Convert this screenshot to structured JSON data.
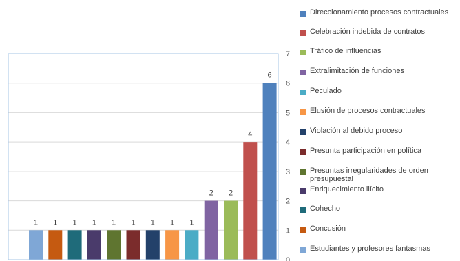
{
  "chart_data": {
    "type": "bar",
    "categories": [
      "Estudiantes y profesores fantasmas",
      "Concusión",
      "Cohecho",
      "Enriquecimiento ilícito",
      "Presuntas irregularidades de orden presupuestal",
      "Presunta participación en política",
      "Violación al debido proceso",
      "Elusión de procesos contractuales",
      "Peculado",
      "Extralimitación de funciones",
      "Tráfico de influencias",
      "Celebración indebida de contratos",
      "Direccionamiento procesos contractuales"
    ],
    "values": [
      1,
      1,
      1,
      1,
      1,
      1,
      1,
      1,
      1,
      2,
      2,
      4,
      6
    ],
    "value_labels": [
      "1",
      "1",
      "1",
      "1",
      "1",
      "1",
      "1",
      "1",
      "1",
      "2",
      "2",
      "4",
      "6"
    ],
    "colors": [
      "#7fa7d6",
      "#c55a11",
      "#1f6b7a",
      "#4a3b6b",
      "#5f7530",
      "#7b2c2c",
      "#23416a",
      "#f79646",
      "#4bacc6",
      "#8064a2",
      "#9bbb59",
      "#c0504d",
      "#4f81bd"
    ],
    "ylim": [
      0,
      7
    ],
    "y_ticks": [
      "0",
      "1",
      "2",
      "3",
      "4",
      "5",
      "6",
      "7"
    ],
    "grid": true,
    "legend_position": "right",
    "legend_order": [
      12,
      11,
      10,
      9,
      8,
      7,
      6,
      5,
      4,
      3,
      2,
      1,
      0
    ],
    "title": "",
    "xlabel": "",
    "ylabel": ""
  }
}
